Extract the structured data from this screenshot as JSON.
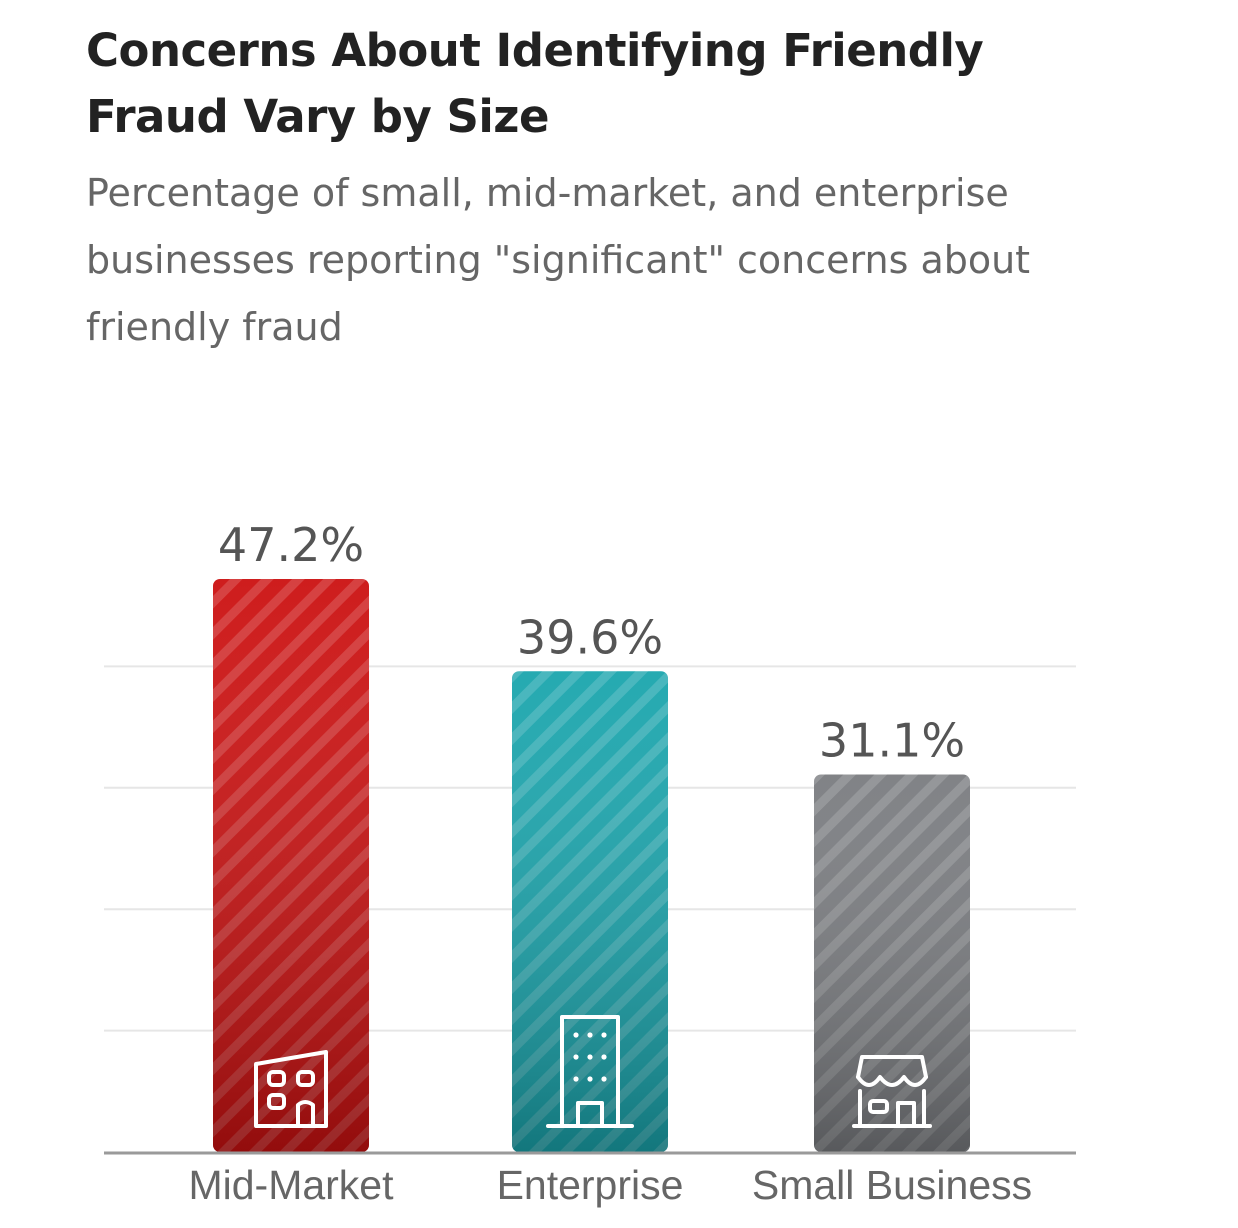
{
  "title": "Concerns About Identifying Friendly Fraud Vary by Size",
  "subtitle": "Percentage of small, mid-market, and enterprise businesses reporting \"significant\" concerns about friendly fraud",
  "colors": {
    "mid_market": "#cc1111",
    "enterprise": "#1aa5ad",
    "small_business": "#7a7c80",
    "text_dark": "#222222",
    "text_muted": "#666666",
    "value_label": "#555555",
    "grid": "#e6e6e6",
    "axis": "#9a9a9a"
  },
  "chart_data": {
    "type": "bar",
    "title": "Concerns About Identifying Friendly Fraud Vary by Size",
    "subtitle": "Percentage of small, mid-market, and enterprise businesses reporting \"significant\" concerns about friendly fraud",
    "categories": [
      "Mid-Market",
      "Enterprise",
      "Small Business"
    ],
    "values": [
      47.2,
      39.6,
      31.1
    ],
    "value_labels": [
      "47.2%",
      "39.6%",
      "31.1%"
    ],
    "icons": [
      "office-building-icon",
      "skyscraper-icon",
      "storefront-icon"
    ],
    "bar_colors": [
      "#cc1111",
      "#1aa5ad",
      "#7a7c80"
    ],
    "ylim": [
      0,
      50
    ],
    "grid": true,
    "legend": "none",
    "xlabel": "",
    "ylabel": ""
  }
}
